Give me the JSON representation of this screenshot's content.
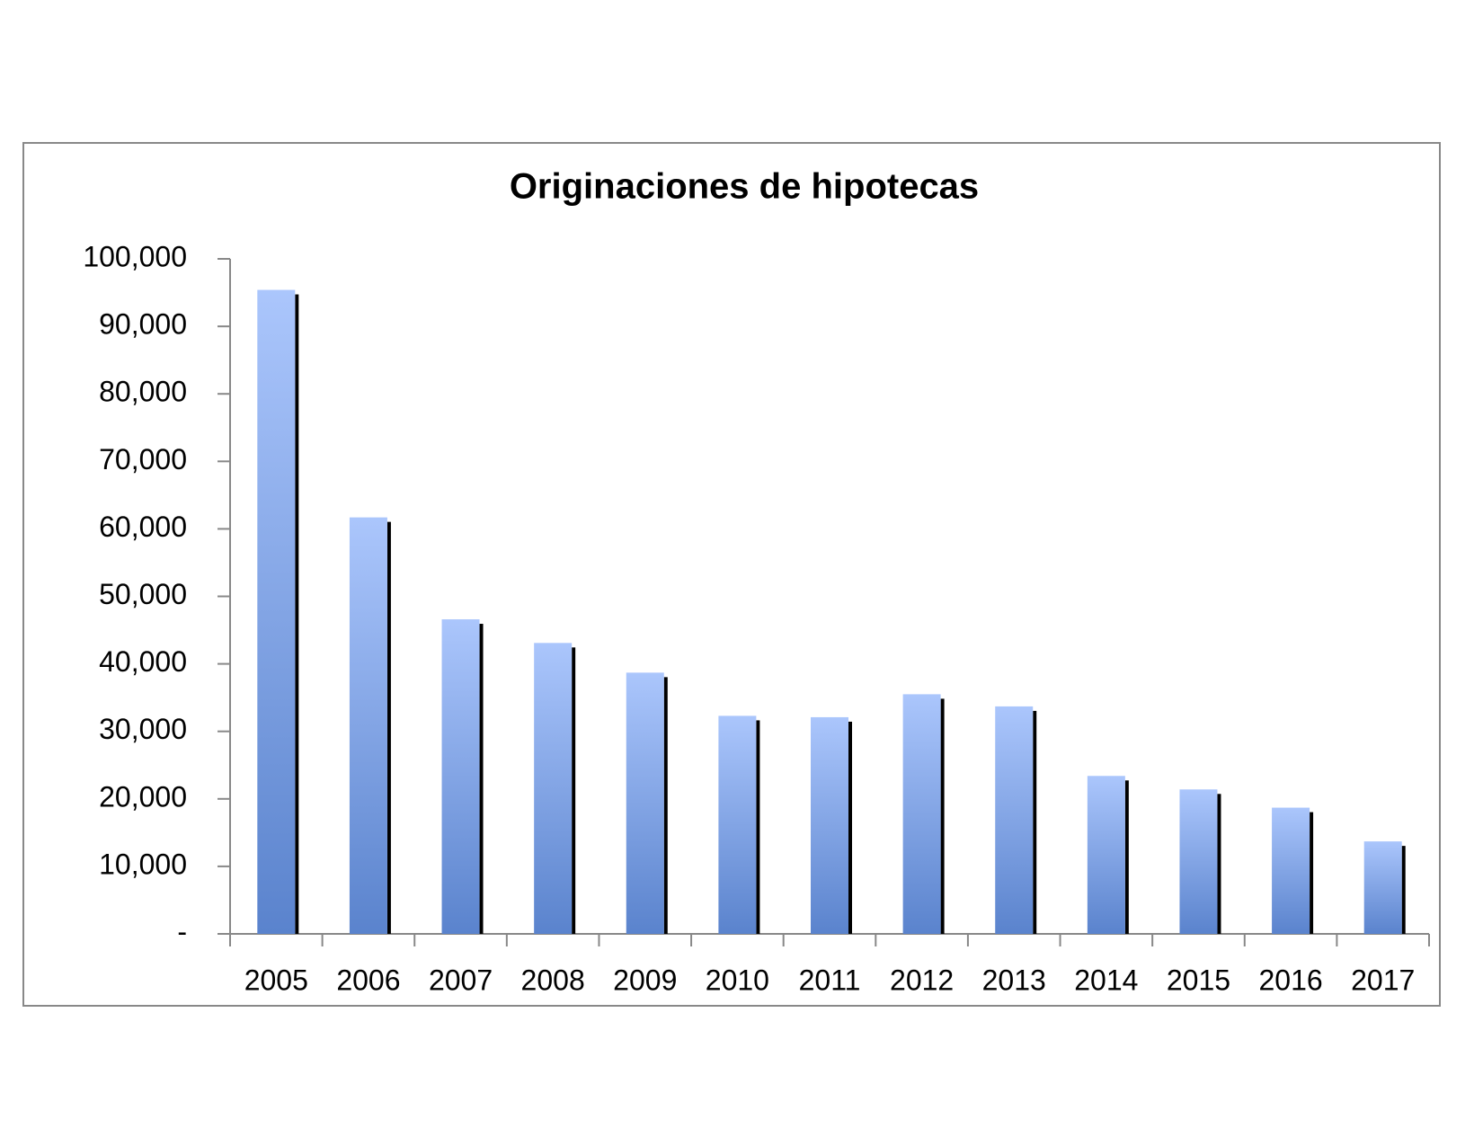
{
  "chart_data": {
    "type": "bar",
    "title": "Originaciones de hipotecas",
    "categories": [
      "2005",
      "2006",
      "2007",
      "2008",
      "2009",
      "2010",
      "2011",
      "2012",
      "2013",
      "2014",
      "2015",
      "2016",
      "2017"
    ],
    "values": [
      95400,
      61700,
      46600,
      43100,
      38700,
      32300,
      32100,
      35500,
      33700,
      23400,
      21400,
      18700,
      13700
    ],
    "color": [
      "#abc6fc",
      "#5a83cd"
    ],
    "ylim": [
      0,
      100000
    ],
    "yticks": [
      {
        "value": 0,
        "label": "-"
      },
      {
        "value": 10000,
        "label": "10,000"
      },
      {
        "value": 20000,
        "label": "20,000"
      },
      {
        "value": 30000,
        "label": "30,000"
      },
      {
        "value": 40000,
        "label": "40,000"
      },
      {
        "value": 50000,
        "label": "50,000"
      },
      {
        "value": 60000,
        "label": "60,000"
      },
      {
        "value": 70000,
        "label": "70,000"
      },
      {
        "value": 80000,
        "label": "80,000"
      },
      {
        "value": 90000,
        "label": "90,000"
      },
      {
        "value": 100000,
        "label": "100,000"
      }
    ],
    "grid": false
  }
}
